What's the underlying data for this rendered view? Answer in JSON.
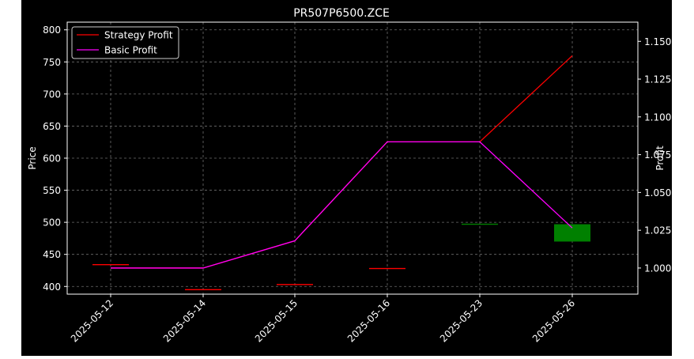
{
  "chart_data": {
    "type": "line",
    "title": "PR507P6500.ZCE",
    "ylabel": "Price",
    "y2label": "Profit",
    "categories": [
      "2025-05-12",
      "2025-05-14",
      "2025-05-15",
      "2025-05-16",
      "2025-05-23",
      "2025-05-26"
    ],
    "ylim": [
      388,
      812
    ],
    "y_ticks": [
      400,
      450,
      500,
      550,
      600,
      650,
      700,
      750,
      800
    ],
    "y2lim": [
      0.9827,
      1.1627
    ],
    "y2_ticks": [
      1.0,
      1.025,
      1.05,
      1.075,
      1.1,
      1.125,
      1.15
    ],
    "y2_tick_labels": [
      "1.000",
      "1.025",
      "1.050",
      "1.075",
      "1.100",
      "1.125",
      "1.150"
    ],
    "grid": true,
    "legend_position": "top-left",
    "candles": [
      {
        "x": "2025-05-12",
        "open": 434,
        "close": 434,
        "high": 434,
        "low": 434,
        "color": "#ff0000"
      },
      {
        "x": "2025-05-14",
        "open": 395,
        "close": 395,
        "high": 395,
        "low": 395,
        "color": "#ff0000"
      },
      {
        "x": "2025-05-15",
        "open": 403,
        "close": 403,
        "high": 403,
        "low": 403,
        "color": "#ff0000"
      },
      {
        "x": "2025-05-16",
        "open": 428,
        "close": 428,
        "high": 428,
        "low": 428,
        "color": "#ff0000"
      },
      {
        "x": "2025-05-23",
        "open": 497,
        "close": 497,
        "high": 497,
        "low": 497,
        "color": "#008000"
      },
      {
        "x": "2025-05-26",
        "open": 470,
        "close": 497,
        "high": 497,
        "low": 470,
        "color": "#008000"
      }
    ],
    "series": [
      {
        "name": "Strategy Profit",
        "color": "#ff0000",
        "axis": "right",
        "values": [
          1.0,
          1.0,
          1.018,
          1.0835,
          1.0835,
          1.1405
        ]
      },
      {
        "name": "Basic Profit",
        "color": "#ff00ff",
        "axis": "right",
        "values": [
          1.0,
          1.0,
          1.018,
          1.0835,
          1.0835,
          1.0265
        ]
      }
    ]
  }
}
